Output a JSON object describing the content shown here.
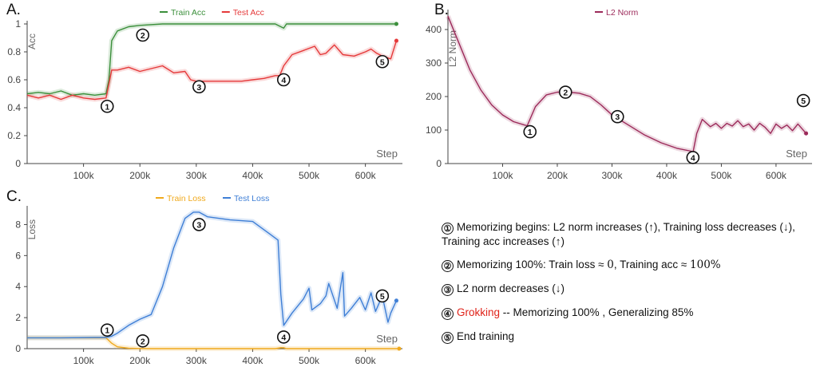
{
  "colors": {
    "train": "#3b8f3b",
    "test": "#e5393a",
    "l2": "#9c2a5a",
    "train_loss": "#f0a91c",
    "test_loss": "#3f7fd6",
    "grokking": "#e0241b"
  },
  "chart_data": [
    {
      "panel": "A.",
      "type": "line",
      "ylabel": "Acc",
      "xlabel": "Step",
      "x_ticks": [
        "100k",
        "200k",
        "300k",
        "400k",
        "500k",
        "600k"
      ],
      "y_ticks": [
        "0",
        "0.2",
        "0.4",
        "0.6",
        "0.8",
        "1"
      ],
      "xlim": [
        0,
        660000
      ],
      "ylim": [
        0,
        1
      ],
      "legend": "top-center",
      "series": [
        {
          "name": "Train Acc",
          "x": [
            0,
            20000,
            40000,
            60000,
            80000,
            100000,
            120000,
            140000,
            145000,
            150000,
            160000,
            180000,
            200000,
            240000,
            300000,
            400000,
            440000,
            450000,
            455000,
            460000,
            500000,
            600000,
            655000
          ],
          "y": [
            0.5,
            0.51,
            0.5,
            0.52,
            0.49,
            0.5,
            0.49,
            0.5,
            0.6,
            0.88,
            0.95,
            0.98,
            0.99,
            1,
            1,
            1,
            1,
            0.98,
            0.97,
            1,
            1,
            1,
            1
          ]
        },
        {
          "name": "Test Acc",
          "x": [
            0,
            20000,
            40000,
            60000,
            80000,
            100000,
            120000,
            140000,
            150000,
            160000,
            180000,
            200000,
            220000,
            240000,
            260000,
            280000,
            290000,
            300000,
            340000,
            380000,
            400000,
            420000,
            440000,
            448000,
            455000,
            470000,
            490000,
            510000,
            520000,
            530000,
            545000,
            560000,
            580000,
            600000,
            610000,
            620000,
            630000,
            645000,
            655000
          ],
          "y": [
            0.49,
            0.47,
            0.49,
            0.46,
            0.49,
            0.47,
            0.46,
            0.47,
            0.67,
            0.67,
            0.69,
            0.66,
            0.68,
            0.7,
            0.65,
            0.66,
            0.6,
            0.59,
            0.59,
            0.59,
            0.6,
            0.61,
            0.63,
            0.63,
            0.7,
            0.78,
            0.81,
            0.84,
            0.78,
            0.79,
            0.85,
            0.78,
            0.77,
            0.8,
            0.82,
            0.79,
            0.77,
            0.75,
            0.88
          ]
        }
      ],
      "annotations": [
        "①",
        "②",
        "③",
        "④",
        "⑤"
      ]
    },
    {
      "panel": "B.",
      "type": "line",
      "ylabel": "L2 Norm",
      "xlabel": "Step",
      "x_ticks": [
        "100k",
        "200k",
        "300k",
        "400k",
        "500k",
        "600k"
      ],
      "y_ticks": [
        "0",
        "100",
        "200",
        "300",
        "400"
      ],
      "xlim": [
        0,
        660000
      ],
      "ylim": [
        0,
        450
      ],
      "legend": "top-center",
      "series": [
        {
          "name": "L2 Norm",
          "x": [
            0,
            20000,
            40000,
            60000,
            80000,
            100000,
            120000,
            140000,
            145000,
            160000,
            180000,
            200000,
            220000,
            240000,
            260000,
            280000,
            300000,
            330000,
            360000,
            390000,
            420000,
            445000,
            448000,
            455000,
            465000,
            480000,
            490000,
            500000,
            510000,
            520000,
            530000,
            540000,
            550000,
            560000,
            570000,
            580000,
            590000,
            600000,
            610000,
            620000,
            630000,
            640000,
            655000
          ],
          "y": [
            440,
            360,
            280,
            220,
            175,
            145,
            125,
            115,
            113,
            170,
            205,
            213,
            213,
            210,
            200,
            175,
            145,
            115,
            85,
            62,
            45,
            37,
            32,
            90,
            132,
            110,
            120,
            105,
            120,
            112,
            128,
            110,
            118,
            100,
            120,
            108,
            90,
            118,
            105,
            115,
            98,
            118,
            90
          ]
        }
      ],
      "annotations": [
        "①",
        "②",
        "③",
        "④",
        "⑤"
      ]
    },
    {
      "panel": "C.",
      "type": "line",
      "ylabel": "Loss",
      "xlabel": "Step",
      "x_ticks": [
        "100k",
        "200k",
        "300k",
        "400k",
        "500k",
        "600k"
      ],
      "y_ticks": [
        "0",
        "2",
        "4",
        "6",
        "8"
      ],
      "xlim": [
        0,
        660000
      ],
      "ylim": [
        0,
        9
      ],
      "legend": "top-center",
      "series": [
        {
          "name": "Train Loss",
          "x": [
            0,
            100000,
            140000,
            150000,
            160000,
            180000,
            200000,
            220000,
            300000,
            440000,
            450000,
            455000,
            460000,
            600000,
            660000
          ],
          "y": [
            0.7,
            0.7,
            0.7,
            0.35,
            0.12,
            0.03,
            0.01,
            0.0,
            0.0,
            0.0,
            0.06,
            0.06,
            0.0,
            0.0,
            0.0
          ]
        },
        {
          "name": "Test Loss",
          "x": [
            0,
            60000,
            120000,
            140000,
            150000,
            160000,
            180000,
            200000,
            220000,
            240000,
            260000,
            280000,
            295000,
            305000,
            320000,
            360000,
            400000,
            430000,
            445000,
            450000,
            455000,
            470000,
            490000,
            500000,
            505000,
            520000,
            530000,
            535000,
            550000,
            560000,
            563000,
            575000,
            590000,
            600000,
            610000,
            618000,
            630000,
            640000,
            645000,
            655000
          ],
          "y": [
            0.7,
            0.7,
            0.72,
            0.72,
            0.8,
            1.0,
            1.5,
            1.9,
            2.2,
            4.0,
            6.5,
            8.4,
            8.8,
            8.8,
            8.5,
            8.3,
            8.2,
            7.4,
            7.0,
            3.5,
            1.5,
            2.3,
            3.2,
            3.9,
            2.5,
            2.9,
            3.4,
            4.2,
            2.6,
            4.9,
            2.1,
            2.6,
            3.3,
            2.5,
            3.6,
            2.4,
            3.4,
            1.7,
            2.3,
            3.1
          ]
        }
      ],
      "annotations": [
        "①",
        "②",
        "③",
        "④",
        "⑤"
      ]
    }
  ],
  "notes": [
    {
      "num": "①",
      "text": "Memorizing begins: L2 norm increases (↑), Training loss decreases (↓), Training acc increases (↑)"
    },
    {
      "num": "②",
      "text_a": "Memorizing 100%: Train loss ≈ ",
      "math_a": "0",
      "text_b": ", Training acc ≈ ",
      "math_b": "100%"
    },
    {
      "num": "③",
      "text": "L2 norm decreases (↓)"
    },
    {
      "num": "④",
      "highlight": "Grokking",
      "text": " -- Memorizing 100% , Generalizing 85%"
    },
    {
      "num": "⑤",
      "text": "End training"
    }
  ]
}
